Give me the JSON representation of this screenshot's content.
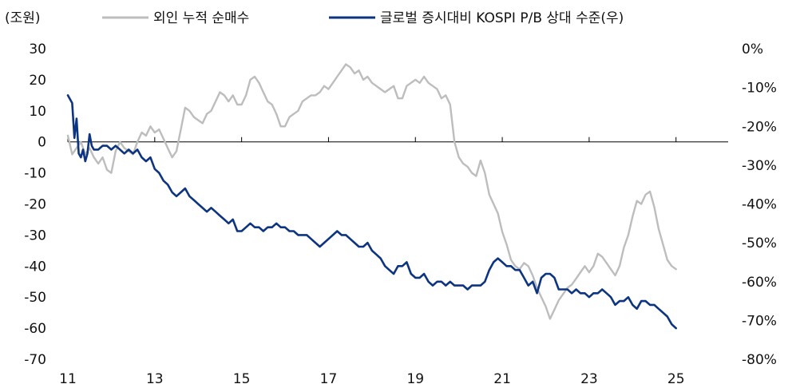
{
  "chart_data": {
    "type": "line",
    "title": "",
    "left_axis": {
      "unit_label": "(조원)",
      "ylim": [
        -70,
        30
      ],
      "ticks": [
        30,
        20,
        10,
        0,
        -10,
        -20,
        -30,
        -40,
        -50,
        -60,
        -70
      ]
    },
    "right_axis": {
      "ylim": [
        -80,
        0
      ],
      "ticks": [
        0,
        -10,
        -20,
        -30,
        -40,
        -50,
        -60,
        -70,
        -80
      ],
      "tick_labels": [
        "0%",
        "-10%",
        "-20%",
        "-30%",
        "-40%",
        "-50%",
        "-60%",
        "-70%",
        "-80%"
      ]
    },
    "x_axis": {
      "xlim": [
        2011,
        2026.2
      ],
      "ticks": [
        2011,
        2013,
        2015,
        2017,
        2019,
        2021,
        2023,
        2025
      ],
      "tick_labels": [
        "11",
        "13",
        "15",
        "17",
        "19",
        "21",
        "23",
        "25"
      ]
    },
    "grid": false,
    "legend_position": "top",
    "series": [
      {
        "name": "외인 누적 순매수",
        "axis": "left",
        "color": "#bdbdbd",
        "points": [
          [
            2011.0,
            2
          ],
          [
            2011.1,
            -4
          ],
          [
            2011.2,
            -2
          ],
          [
            2011.3,
            0
          ],
          [
            2011.4,
            -4
          ],
          [
            2011.5,
            -2
          ],
          [
            2011.6,
            -5
          ],
          [
            2011.7,
            -7
          ],
          [
            2011.8,
            -5
          ],
          [
            2011.9,
            -9
          ],
          [
            2012.0,
            -10
          ],
          [
            2012.1,
            -3
          ],
          [
            2012.2,
            0
          ],
          [
            2012.3,
            -2
          ],
          [
            2012.4,
            -3
          ],
          [
            2012.5,
            -4
          ],
          [
            2012.6,
            0
          ],
          [
            2012.7,
            3
          ],
          [
            2012.8,
            2
          ],
          [
            2012.9,
            5
          ],
          [
            2013.0,
            3
          ],
          [
            2013.1,
            4
          ],
          [
            2013.2,
            1
          ],
          [
            2013.3,
            -2
          ],
          [
            2013.4,
            -5
          ],
          [
            2013.5,
            -3
          ],
          [
            2013.6,
            4
          ],
          [
            2013.7,
            11
          ],
          [
            2013.8,
            10
          ],
          [
            2013.9,
            8
          ],
          [
            2014.0,
            7
          ],
          [
            2014.1,
            6
          ],
          [
            2014.2,
            9
          ],
          [
            2014.3,
            10
          ],
          [
            2014.4,
            13
          ],
          [
            2014.5,
            16
          ],
          [
            2014.6,
            15
          ],
          [
            2014.7,
            13
          ],
          [
            2014.8,
            15
          ],
          [
            2014.9,
            12
          ],
          [
            2015.0,
            12
          ],
          [
            2015.1,
            15
          ],
          [
            2015.2,
            20
          ],
          [
            2015.3,
            21
          ],
          [
            2015.4,
            19
          ],
          [
            2015.5,
            16
          ],
          [
            2015.6,
            13
          ],
          [
            2015.7,
            12
          ],
          [
            2015.8,
            9
          ],
          [
            2015.9,
            5
          ],
          [
            2016.0,
            5
          ],
          [
            2016.1,
            8
          ],
          [
            2016.2,
            9
          ],
          [
            2016.3,
            10
          ],
          [
            2016.4,
            13
          ],
          [
            2016.5,
            14
          ],
          [
            2016.6,
            15
          ],
          [
            2016.7,
            15
          ],
          [
            2016.8,
            16
          ],
          [
            2016.9,
            18
          ],
          [
            2017.0,
            17
          ],
          [
            2017.1,
            19
          ],
          [
            2017.2,
            21
          ],
          [
            2017.3,
            23
          ],
          [
            2017.4,
            25
          ],
          [
            2017.5,
            24
          ],
          [
            2017.6,
            22
          ],
          [
            2017.7,
            23
          ],
          [
            2017.8,
            20
          ],
          [
            2017.9,
            21
          ],
          [
            2018.0,
            19
          ],
          [
            2018.1,
            18
          ],
          [
            2018.2,
            17
          ],
          [
            2018.3,
            16
          ],
          [
            2018.4,
            17
          ],
          [
            2018.5,
            18
          ],
          [
            2018.6,
            14
          ],
          [
            2018.7,
            14
          ],
          [
            2018.8,
            18
          ],
          [
            2018.9,
            19
          ],
          [
            2019.0,
            20
          ],
          [
            2019.1,
            19
          ],
          [
            2019.2,
            21
          ],
          [
            2019.3,
            19
          ],
          [
            2019.4,
            18
          ],
          [
            2019.5,
            17
          ],
          [
            2019.6,
            14
          ],
          [
            2019.7,
            15
          ],
          [
            2019.8,
            12
          ],
          [
            2019.9,
            0
          ],
          [
            2020.0,
            -5
          ],
          [
            2020.1,
            -7
          ],
          [
            2020.2,
            -8
          ],
          [
            2020.3,
            -10
          ],
          [
            2020.4,
            -11
          ],
          [
            2020.5,
            -6
          ],
          [
            2020.6,
            -10
          ],
          [
            2020.7,
            -17
          ],
          [
            2020.8,
            -20
          ],
          [
            2020.9,
            -23
          ],
          [
            2021.0,
            -29
          ],
          [
            2021.1,
            -33
          ],
          [
            2021.2,
            -38
          ],
          [
            2021.3,
            -40
          ],
          [
            2021.4,
            -41
          ],
          [
            2021.5,
            -39
          ],
          [
            2021.6,
            -40
          ],
          [
            2021.7,
            -43
          ],
          [
            2021.8,
            -47
          ],
          [
            2021.9,
            -50
          ],
          [
            2022.0,
            -53
          ],
          [
            2022.1,
            -57
          ],
          [
            2022.2,
            -54
          ],
          [
            2022.3,
            -51
          ],
          [
            2022.4,
            -49
          ],
          [
            2022.5,
            -47
          ],
          [
            2022.6,
            -46
          ],
          [
            2022.7,
            -44
          ],
          [
            2022.8,
            -42
          ],
          [
            2022.9,
            -40
          ],
          [
            2023.0,
            -42
          ],
          [
            2023.1,
            -40
          ],
          [
            2023.2,
            -36
          ],
          [
            2023.3,
            -37
          ],
          [
            2023.4,
            -39
          ],
          [
            2023.5,
            -41
          ],
          [
            2023.6,
            -43
          ],
          [
            2023.7,
            -40
          ],
          [
            2023.8,
            -34
          ],
          [
            2023.9,
            -30
          ],
          [
            2024.0,
            -24
          ],
          [
            2024.1,
            -19
          ],
          [
            2024.2,
            -20
          ],
          [
            2024.3,
            -17
          ],
          [
            2024.4,
            -16
          ],
          [
            2024.5,
            -21
          ],
          [
            2024.6,
            -28
          ],
          [
            2024.7,
            -33
          ],
          [
            2024.8,
            -38
          ],
          [
            2024.9,
            -40
          ],
          [
            2025.0,
            -41
          ]
        ]
      },
      {
        "name": "글로벌 증시대비 KOSPI P/B 상대 수준(우)",
        "axis": "right",
        "color": "#0d3480",
        "points": [
          [
            2011.0,
            -12
          ],
          [
            2011.05,
            -13
          ],
          [
            2011.1,
            -14
          ],
          [
            2011.15,
            -23
          ],
          [
            2011.2,
            -18
          ],
          [
            2011.25,
            -27
          ],
          [
            2011.3,
            -28
          ],
          [
            2011.35,
            -26
          ],
          [
            2011.4,
            -29
          ],
          [
            2011.45,
            -27
          ],
          [
            2011.5,
            -22
          ],
          [
            2011.55,
            -25
          ],
          [
            2011.6,
            -26
          ],
          [
            2011.7,
            -26
          ],
          [
            2011.8,
            -25
          ],
          [
            2011.9,
            -25
          ],
          [
            2012.0,
            -26
          ],
          [
            2012.1,
            -25
          ],
          [
            2012.2,
            -26
          ],
          [
            2012.3,
            -27
          ],
          [
            2012.4,
            -26
          ],
          [
            2012.5,
            -27
          ],
          [
            2012.6,
            -26
          ],
          [
            2012.7,
            -28
          ],
          [
            2012.8,
            -29
          ],
          [
            2012.9,
            -28
          ],
          [
            2013.0,
            -31
          ],
          [
            2013.1,
            -32
          ],
          [
            2013.2,
            -34
          ],
          [
            2013.3,
            -35
          ],
          [
            2013.4,
            -37
          ],
          [
            2013.5,
            -38
          ],
          [
            2013.6,
            -37
          ],
          [
            2013.7,
            -36
          ],
          [
            2013.8,
            -38
          ],
          [
            2013.9,
            -39
          ],
          [
            2014.0,
            -40
          ],
          [
            2014.1,
            -41
          ],
          [
            2014.2,
            -42
          ],
          [
            2014.3,
            -41
          ],
          [
            2014.4,
            -42
          ],
          [
            2014.5,
            -43
          ],
          [
            2014.6,
            -44
          ],
          [
            2014.7,
            -45
          ],
          [
            2014.8,
            -44
          ],
          [
            2014.9,
            -47
          ],
          [
            2015.0,
            -47
          ],
          [
            2015.1,
            -46
          ],
          [
            2015.2,
            -45
          ],
          [
            2015.3,
            -46
          ],
          [
            2015.4,
            -46
          ],
          [
            2015.5,
            -47
          ],
          [
            2015.6,
            -46
          ],
          [
            2015.7,
            -46
          ],
          [
            2015.8,
            -45
          ],
          [
            2015.9,
            -46
          ],
          [
            2016.0,
            -46
          ],
          [
            2016.1,
            -47
          ],
          [
            2016.2,
            -47
          ],
          [
            2016.3,
            -48
          ],
          [
            2016.4,
            -48
          ],
          [
            2016.5,
            -48
          ],
          [
            2016.6,
            -49
          ],
          [
            2016.7,
            -50
          ],
          [
            2016.8,
            -51
          ],
          [
            2016.9,
            -50
          ],
          [
            2017.0,
            -49
          ],
          [
            2017.1,
            -48
          ],
          [
            2017.2,
            -47
          ],
          [
            2017.3,
            -48
          ],
          [
            2017.4,
            -48
          ],
          [
            2017.5,
            -49
          ],
          [
            2017.6,
            -50
          ],
          [
            2017.7,
            -51
          ],
          [
            2017.8,
            -51
          ],
          [
            2017.9,
            -50
          ],
          [
            2018.0,
            -52
          ],
          [
            2018.1,
            -53
          ],
          [
            2018.2,
            -54
          ],
          [
            2018.3,
            -56
          ],
          [
            2018.4,
            -57
          ],
          [
            2018.5,
            -58
          ],
          [
            2018.6,
            -56
          ],
          [
            2018.7,
            -56
          ],
          [
            2018.8,
            -55
          ],
          [
            2018.9,
            -58
          ],
          [
            2019.0,
            -59
          ],
          [
            2019.1,
            -59
          ],
          [
            2019.2,
            -58
          ],
          [
            2019.3,
            -60
          ],
          [
            2019.4,
            -61
          ],
          [
            2019.5,
            -60
          ],
          [
            2019.6,
            -60
          ],
          [
            2019.7,
            -61
          ],
          [
            2019.8,
            -60
          ],
          [
            2019.9,
            -61
          ],
          [
            2020.0,
            -61
          ],
          [
            2020.1,
            -61
          ],
          [
            2020.2,
            -62
          ],
          [
            2020.3,
            -61
          ],
          [
            2020.4,
            -61
          ],
          [
            2020.5,
            -61
          ],
          [
            2020.6,
            -60
          ],
          [
            2020.7,
            -57
          ],
          [
            2020.8,
            -55
          ],
          [
            2020.9,
            -54
          ],
          [
            2021.0,
            -55
          ],
          [
            2021.1,
            -56
          ],
          [
            2021.2,
            -56
          ],
          [
            2021.3,
            -57
          ],
          [
            2021.4,
            -57
          ],
          [
            2021.5,
            -59
          ],
          [
            2021.6,
            -61
          ],
          [
            2021.7,
            -60
          ],
          [
            2021.8,
            -63
          ],
          [
            2021.9,
            -59
          ],
          [
            2022.0,
            -58
          ],
          [
            2022.1,
            -58
          ],
          [
            2022.2,
            -59
          ],
          [
            2022.3,
            -62
          ],
          [
            2022.4,
            -62
          ],
          [
            2022.5,
            -62
          ],
          [
            2022.6,
            -63
          ],
          [
            2022.7,
            -62
          ],
          [
            2022.8,
            -63
          ],
          [
            2022.9,
            -63
          ],
          [
            2023.0,
            -64
          ],
          [
            2023.1,
            -63
          ],
          [
            2023.2,
            -63
          ],
          [
            2023.3,
            -62
          ],
          [
            2023.4,
            -63
          ],
          [
            2023.5,
            -64
          ],
          [
            2023.6,
            -66
          ],
          [
            2023.7,
            -65
          ],
          [
            2023.8,
            -65
          ],
          [
            2023.9,
            -64
          ],
          [
            2024.0,
            -66
          ],
          [
            2024.1,
            -67
          ],
          [
            2024.2,
            -65
          ],
          [
            2024.3,
            -65
          ],
          [
            2024.4,
            -66
          ],
          [
            2024.5,
            -66
          ],
          [
            2024.6,
            -67
          ],
          [
            2024.7,
            -68
          ],
          [
            2024.8,
            -69
          ],
          [
            2024.9,
            -71
          ],
          [
            2025.0,
            -72
          ]
        ]
      }
    ]
  }
}
